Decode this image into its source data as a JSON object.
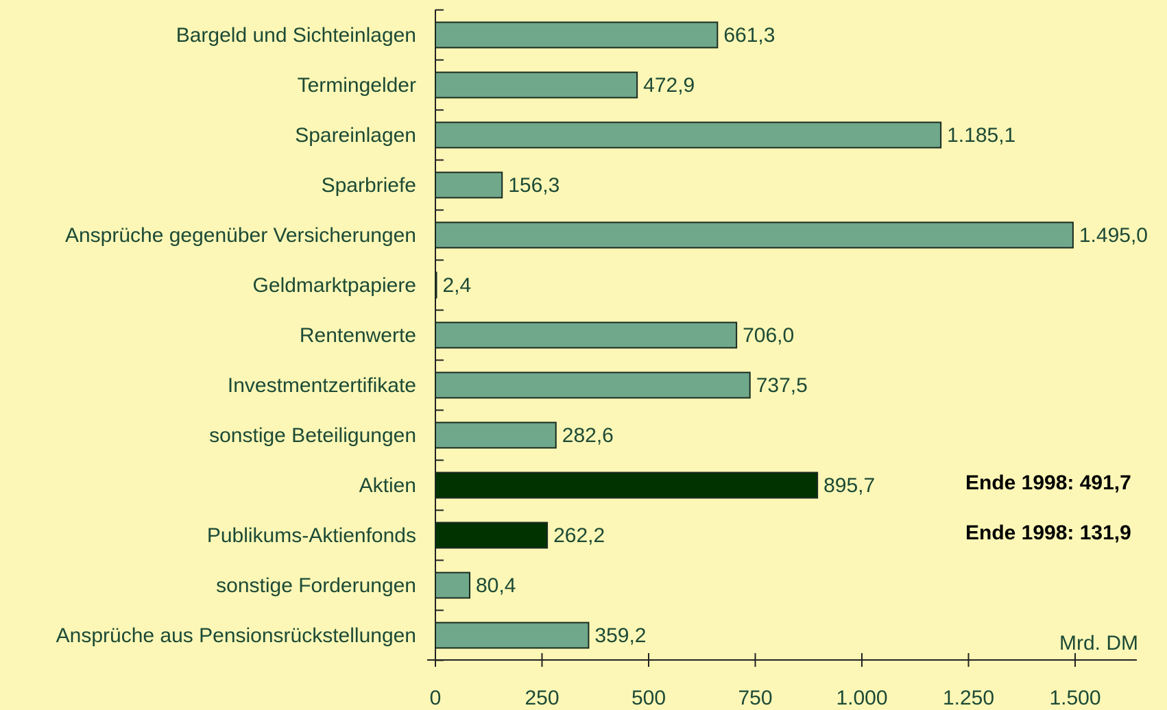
{
  "chart_data": {
    "type": "hbar",
    "categories": [
      "Bargeld und Sichteinlagen",
      "Termingelder",
      "Spareinlagen",
      "Sparbriefe",
      "Ansprüche gegenüber Versicherungen",
      "Geldmarktpapiere",
      "Rentenwerte",
      "Investmentzertifikate",
      "sonstige Beteiligungen",
      "Aktien",
      "Publikums-Aktienfonds",
      "sonstige Forderungen",
      "Ansprüche aus Pensionsrückstellungen"
    ],
    "values": [
      661.3,
      472.9,
      1185.1,
      156.3,
      1495.0,
      2.4,
      706.0,
      737.5,
      282.6,
      895.7,
      262.2,
      80.4,
      359.2
    ],
    "value_labels": [
      "661,3",
      "472,9",
      "1.185,1",
      "156,3",
      "1.495,0",
      "2,4",
      "706,0",
      "737,5",
      "282,6",
      "895,7",
      "262,2",
      "80,4",
      "359,2"
    ],
    "colors": [
      "#6fa88a",
      "#6fa88a",
      "#6fa88a",
      "#6fa88a",
      "#6fa88a",
      "#6fa88a",
      "#6fa88a",
      "#6fa88a",
      "#6fa88a",
      "#003300",
      "#003300",
      "#6fa88a",
      "#6fa88a"
    ],
    "xlim": [
      0,
      1500
    ],
    "xticks": [
      0,
      250,
      500,
      750,
      {
        "value": 1000,
        "label": "1.000"
      },
      {
        "value": 1250,
        "label": "1.250"
      },
      {
        "value": 1500,
        "label": "1.500"
      }
    ],
    "x_label": "Mrd. DM",
    "annotations": [
      {
        "text": "Ende 1998: 491,7",
        "category": "Aktien"
      },
      {
        "text": "Ende 1998: 131,9",
        "category": "Publikums-Aktienfonds"
      }
    ]
  }
}
